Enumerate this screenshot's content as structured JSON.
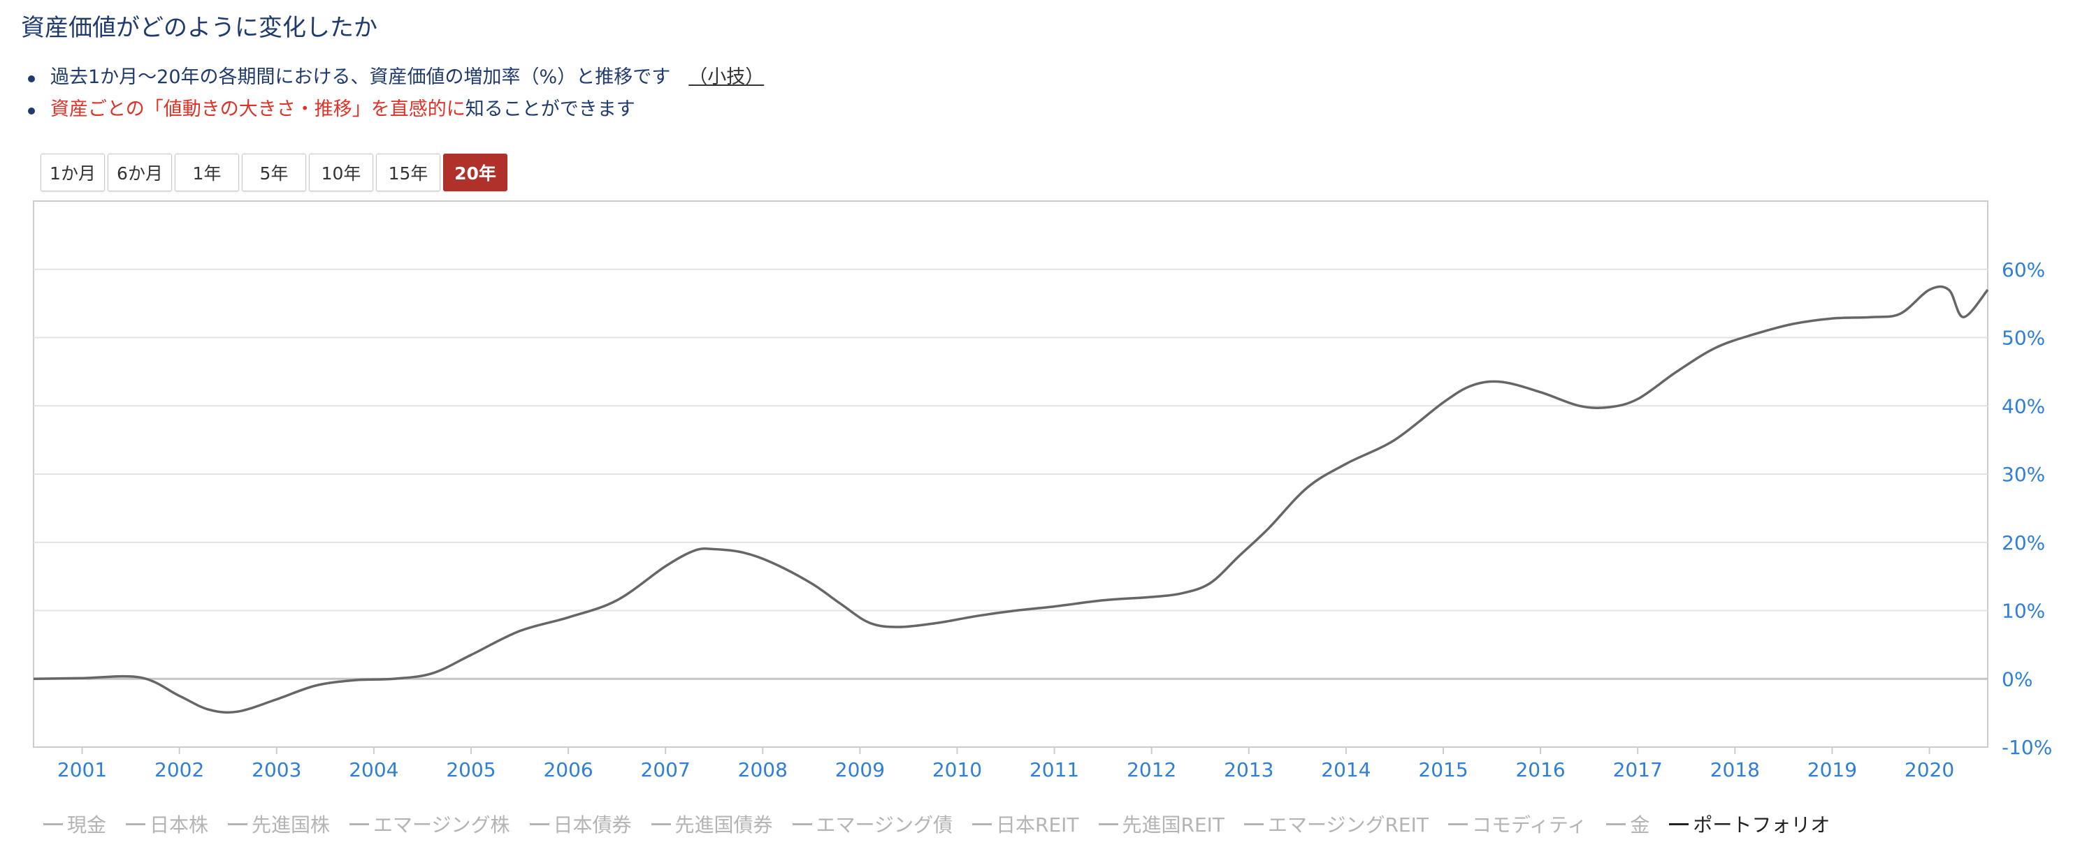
{
  "page": {
    "title": "資産価値がどのように変化したか",
    "notes": [
      {
        "text": "過去1か月〜20年の各期間における、資産価値の増加率（%）と推移です",
        "link": "（小技）"
      },
      {
        "red": "資産ごとの「値動きの大きさ・推移」を直感的に",
        "rest": "知ることができます"
      }
    ]
  },
  "period_buttons": [
    {
      "label": "1か月",
      "active": false
    },
    {
      "label": "6か月",
      "active": false
    },
    {
      "label": "1年",
      "active": false
    },
    {
      "label": "5年",
      "active": false
    },
    {
      "label": "10年",
      "active": false
    },
    {
      "label": "15年",
      "active": false
    },
    {
      "label": "20年",
      "active": true
    }
  ],
  "colors": {
    "title": "#1f3a6e",
    "red_text": "#e03127",
    "active_button": "#b0302a",
    "axis_label": "#2f7fd8",
    "series_line": "#666666",
    "legend_hidden": "#b4b4b4",
    "legend_visible": "#222222"
  },
  "chart_data": {
    "type": "line",
    "title": "",
    "xlabel": "",
    "ylabel": "",
    "xlim": [
      2000.5,
      2020.6
    ],
    "ylim": [
      -10,
      70
    ],
    "x_tick_labels": [
      "2001",
      "2002",
      "2003",
      "2004",
      "2005",
      "2006",
      "2007",
      "2008",
      "2009",
      "2010",
      "2011",
      "2012",
      "2013",
      "2014",
      "2015",
      "2016",
      "2017",
      "2018",
      "2019",
      "2020"
    ],
    "y_tick_values": [
      -10,
      0,
      10,
      20,
      30,
      40,
      50,
      60
    ],
    "y_tick_labels": [
      "-10%",
      "0%",
      "10%",
      "20%",
      "30%",
      "40%",
      "50%",
      "60%"
    ],
    "y_axis_side": "right",
    "grid": true,
    "legend_position": "bottom",
    "legend_items": [
      {
        "name": "現金",
        "visible": false
      },
      {
        "name": "日本株",
        "visible": false
      },
      {
        "name": "先進国株",
        "visible": false
      },
      {
        "name": "エマージング株",
        "visible": false
      },
      {
        "name": "日本債券",
        "visible": false
      },
      {
        "name": "先進国債券",
        "visible": false
      },
      {
        "name": "エマージング債",
        "visible": false
      },
      {
        "name": "日本REIT",
        "visible": false
      },
      {
        "name": "先進国REIT",
        "visible": false
      },
      {
        "name": "エマージングREIT",
        "visible": false
      },
      {
        "name": "コモディティ",
        "visible": false
      },
      {
        "name": "金",
        "visible": false
      },
      {
        "name": "ポートフォリオ",
        "visible": true
      }
    ],
    "series": [
      {
        "name": "ポートフォリオ",
        "x": [
          2000.5,
          2001.0,
          2001.6,
          2002.0,
          2002.3,
          2002.6,
          2003.0,
          2003.4,
          2003.8,
          2004.2,
          2004.6,
          2005.0,
          2005.5,
          2006.0,
          2006.5,
          2007.0,
          2007.3,
          2007.5,
          2007.8,
          2008.1,
          2008.5,
          2008.8,
          2009.1,
          2009.4,
          2009.8,
          2010.2,
          2010.6,
          2011.0,
          2011.5,
          2012.0,
          2012.3,
          2012.6,
          2012.9,
          2013.2,
          2013.6,
          2014.0,
          2014.5,
          2015.0,
          2015.3,
          2015.6,
          2016.0,
          2016.4,
          2016.7,
          2017.0,
          2017.4,
          2017.8,
          2018.2,
          2018.6,
          2019.0,
          2019.4,
          2019.7,
          2020.0,
          2020.2,
          2020.35,
          2020.6
        ],
        "y": [
          0,
          0.1,
          0.2,
          -2.5,
          -4.5,
          -4.8,
          -3.0,
          -1.0,
          -0.2,
          0,
          0.8,
          3.5,
          7.0,
          9.0,
          11.5,
          16.5,
          18.8,
          19.0,
          18.5,
          17.0,
          14.0,
          11.0,
          8.2,
          7.6,
          8.2,
          9.2,
          10.0,
          10.6,
          11.5,
          12.0,
          12.5,
          14.0,
          18.0,
          22.0,
          28.0,
          31.5,
          35.0,
          40.5,
          43.0,
          43.5,
          42.0,
          40.0,
          39.8,
          41.0,
          45.0,
          48.5,
          50.5,
          52.0,
          52.8,
          53.0,
          53.5,
          57.0,
          57.0,
          53.0,
          57.0
        ]
      }
    ]
  }
}
